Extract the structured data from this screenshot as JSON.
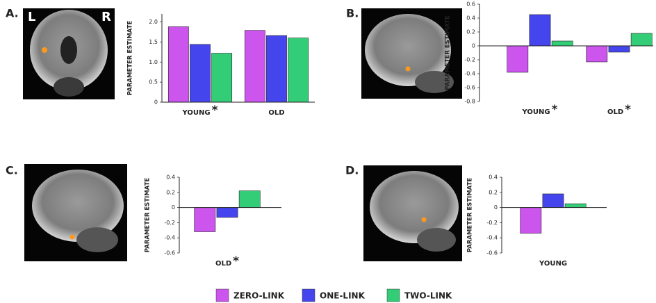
{
  "legend": [
    {
      "name": "ZERO-LINK",
      "color": "#cc55ee"
    },
    {
      "name": "ONE-LINK",
      "color": "#4545ee"
    },
    {
      "name": "TWO-LINK",
      "color": "#33cc77"
    }
  ],
  "chart_data": [
    {
      "type": "bar",
      "panel": "A.",
      "image_labels": [
        "L",
        "R"
      ],
      "y_label": "PARAMETER ESTIMATE",
      "categories": [
        "YOUNG",
        "OLD"
      ],
      "significance": [
        "*",
        null
      ],
      "series": [
        {
          "values": [
            1.88,
            1.79
          ]
        },
        {
          "values": [
            1.44,
            1.66
          ]
        },
        {
          "values": [
            1.22,
            1.6
          ]
        }
      ],
      "ylim": [
        0,
        2.2
      ],
      "yticks": [
        0,
        0.5,
        {
          "value": 1,
          "label": "1.0"
        },
        1.5,
        {
          "value": 2,
          "label": "2.0"
        }
      ]
    },
    {
      "type": "bar",
      "panel": "B.",
      "y_label": "PARAMETER ESTIMATE",
      "categories": [
        "YOUNG",
        "OLD"
      ],
      "significance": [
        "*",
        "*"
      ],
      "series": [
        {
          "values": [
            -0.38,
            -0.23
          ]
        },
        {
          "values": [
            0.45,
            -0.09
          ]
        },
        {
          "values": [
            0.07,
            0.18
          ]
        }
      ],
      "ylim": [
        -0.8,
        0.6
      ],
      "yticks": [
        0.6,
        0.4,
        0.2,
        0,
        -0.2,
        -0.4,
        -0.6,
        -0.8
      ]
    },
    {
      "type": "bar",
      "panel": "C.",
      "y_label": "PARAMETER ESTIMATE",
      "categories": [
        "OLD"
      ],
      "significance": [
        "*"
      ],
      "series": [
        {
          "values": [
            -0.32
          ]
        },
        {
          "values": [
            -0.13
          ]
        },
        {
          "values": [
            0.22
          ]
        }
      ],
      "ylim": [
        -0.6,
        0.4
      ],
      "yticks": [
        0.4,
        0.2,
        0,
        -0.2,
        -0.4,
        -0.6
      ]
    },
    {
      "type": "bar",
      "panel": "D.",
      "y_label": "PARAMETER ESTIMATE",
      "categories": [
        "YOUNG"
      ],
      "significance": [
        null
      ],
      "series": [
        {
          "values": [
            -0.34
          ]
        },
        {
          "values": [
            0.18
          ]
        },
        {
          "values": [
            0.05
          ]
        }
      ],
      "ylim": [
        -0.6,
        0.4
      ],
      "yticks": [
        0.4,
        0.2,
        0,
        -0.2,
        -0.4,
        -0.6
      ]
    }
  ]
}
